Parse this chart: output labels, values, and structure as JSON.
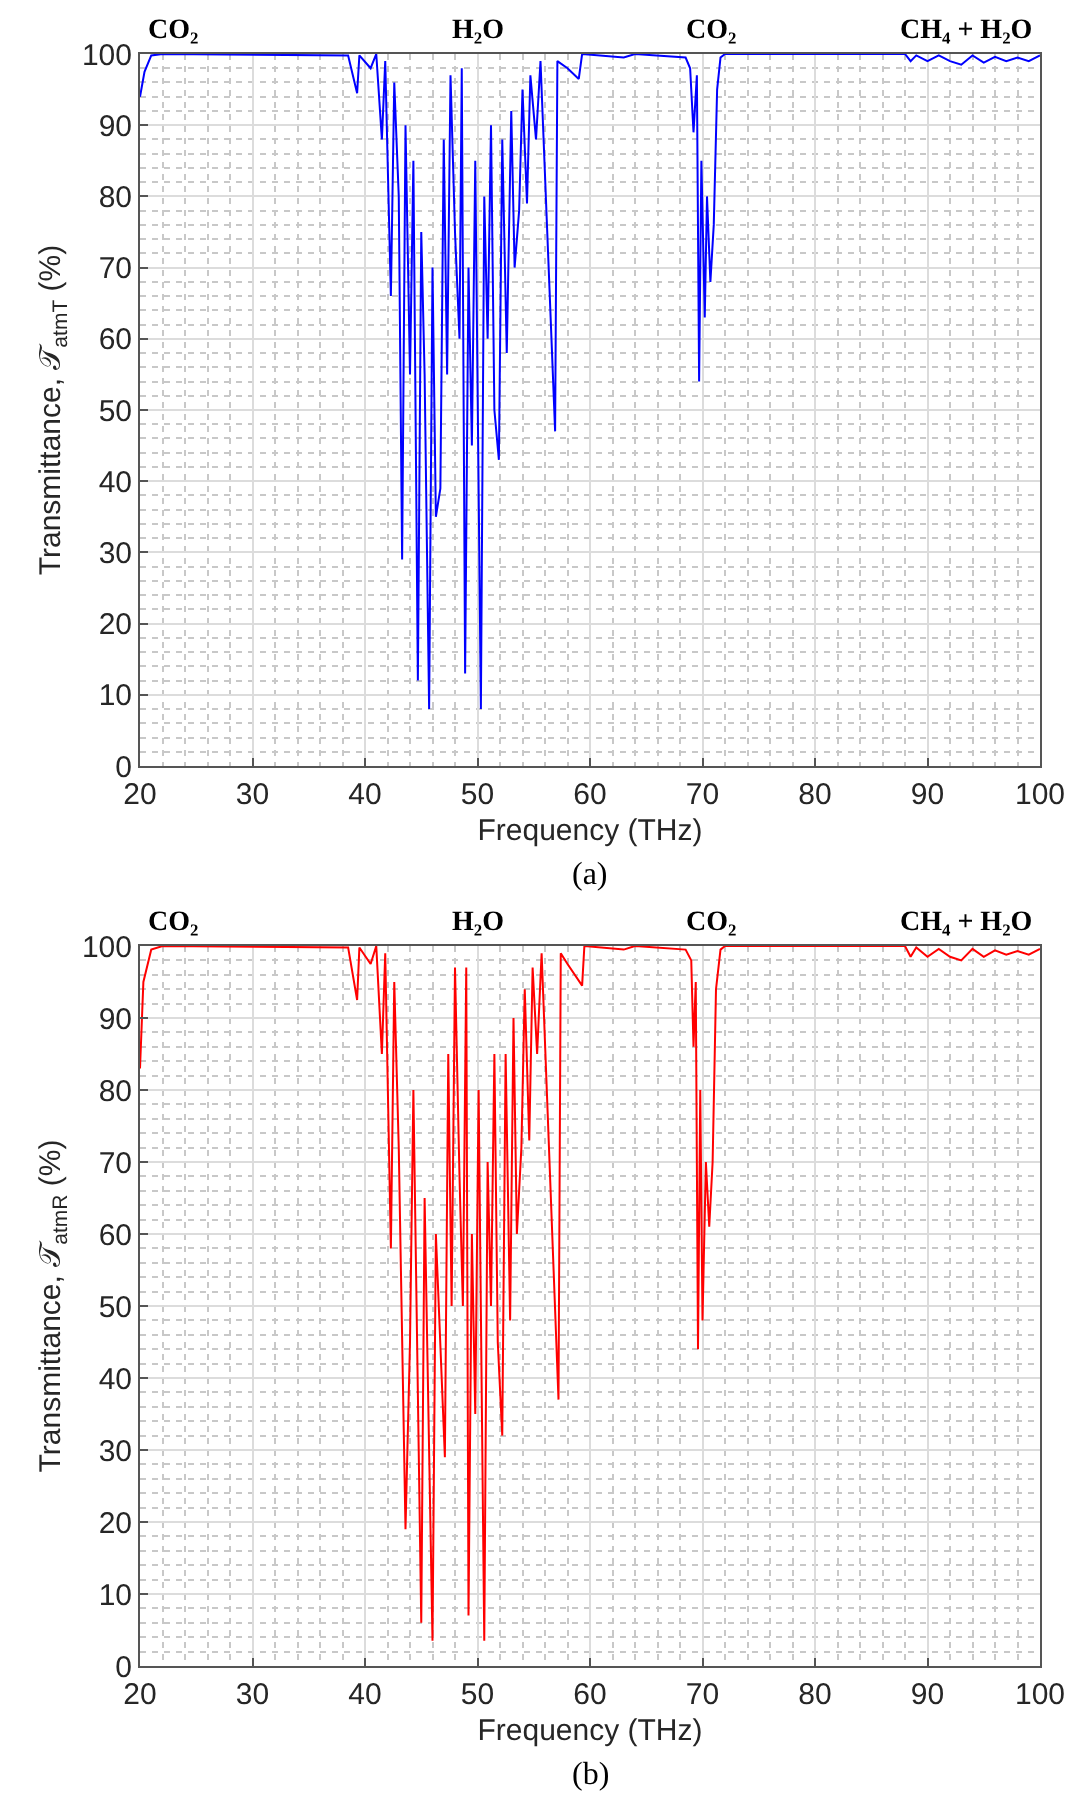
{
  "chart_data": [
    {
      "type": "line",
      "xlabel": "Frequency (THz)",
      "ylabel": "Transmittance, 𝒯$_{atmT}$ (%)",
      "xlim": [
        20,
        100
      ],
      "xticks": [
        20,
        30,
        40,
        50,
        60,
        70,
        80,
        90,
        100
      ],
      "ylim": [
        0,
        100
      ],
      "yticks": [
        0,
        10,
        20,
        30,
        40,
        50,
        60,
        70,
        80,
        90,
        100
      ],
      "grid": true,
      "marker": "none",
      "line_style": "solid",
      "series": [
        {
          "color": "#0000ff",
          "x": [
            20.0,
            20.4,
            21.0,
            22,
            38.5,
            39.3,
            39.5,
            40.5,
            41.0,
            41.5,
            41.8,
            42.3,
            42.6,
            43.0,
            43.3,
            43.6,
            44.0,
            44.3,
            44.7,
            45.0,
            45.3,
            45.7,
            46.0,
            46.3,
            46.7,
            47.0,
            47.3,
            47.6,
            48.0,
            48.4,
            48.6,
            48.9,
            49.2,
            49.5,
            49.8,
            50.3,
            50.6,
            50.9,
            51.2,
            51.5,
            51.9,
            52.2,
            52.6,
            53.0,
            53.3,
            53.7,
            54.0,
            54.4,
            54.7,
            55.2,
            55.6,
            56.9,
            57.1,
            58,
            59,
            59.3,
            63,
            64,
            68.5,
            68.9,
            69.2,
            69.5,
            69.7,
            69.9,
            70.2,
            70.4,
            70.7,
            71.0,
            71.3,
            71.6,
            72,
            88,
            88.5,
            89,
            90,
            91,
            92,
            93,
            94,
            95,
            96,
            97,
            98,
            99,
            100
          ],
          "values": [
            94,
            97.5,
            99.8,
            100,
            99.8,
            94.5,
            99.8,
            98,
            100,
            88,
            99,
            66,
            96,
            80,
            29,
            90,
            55,
            85,
            12,
            75,
            55,
            8,
            70,
            35,
            39,
            88,
            55,
            97,
            75,
            60,
            98,
            13,
            70,
            45,
            85,
            8,
            80,
            60,
            90,
            50,
            43,
            88,
            58,
            92,
            70,
            78,
            95,
            79,
            97,
            88,
            99,
            47,
            99,
            98,
            96.5,
            100,
            99.5,
            100,
            99.5,
            98,
            89,
            97,
            54,
            85,
            63,
            80,
            68,
            76,
            95,
            99.5,
            100,
            100,
            99,
            99.8,
            99,
            99.8,
            99,
            98.5,
            99.8,
            98.8,
            99.6,
            99,
            99.5,
            99,
            99.8
          ]
        }
      ],
      "annotations": [
        "CO₂",
        "H₂O",
        "CO₂",
        "CH₄ + H₂O",
        "(a)"
      ]
    },
    {
      "type": "line",
      "xlabel": "Frequency (THz)",
      "ylabel": "Transmittance, 𝒯$_{atmR}$ (%)",
      "xlim": [
        20,
        100
      ],
      "xticks": [
        20,
        30,
        40,
        50,
        60,
        70,
        80,
        90,
        100
      ],
      "ylim": [
        0,
        100
      ],
      "yticks": [
        0,
        10,
        20,
        30,
        40,
        50,
        60,
        70,
        80,
        90,
        100
      ],
      "grid": true,
      "marker": "none",
      "line_style": "solid",
      "series": [
        {
          "color": "#ff0000",
          "x": [
            20.0,
            20.3,
            21.0,
            22,
            38.5,
            39.3,
            39.5,
            40.5,
            41.0,
            41.5,
            41.8,
            42.3,
            42.6,
            43.0,
            43.6,
            44.0,
            44.3,
            45.0,
            45.3,
            46.0,
            46.3,
            47.1,
            47.4,
            47.7,
            48.0,
            48.4,
            48.7,
            49.0,
            49.2,
            49.5,
            49.8,
            50.1,
            50.6,
            50.9,
            51.2,
            51.5,
            51.8,
            52.2,
            52.5,
            52.9,
            53.2,
            53.5,
            53.9,
            54.2,
            54.6,
            54.9,
            55.3,
            55.7,
            57.2,
            57.4,
            58,
            59.3,
            59.5,
            63,
            64,
            68.5,
            69.0,
            69.2,
            69.4,
            69.6,
            69.8,
            70.0,
            70.3,
            70.6,
            70.9,
            71.2,
            71.6,
            72,
            88,
            88.5,
            89,
            90,
            91,
            92,
            93,
            94,
            95,
            96,
            97,
            98,
            99,
            100
          ],
          "values": [
            83,
            95,
            99.5,
            100,
            99.8,
            92.5,
            99.8,
            97.5,
            100,
            85,
            99,
            58,
            95,
            72,
            19,
            45,
            80,
            6,
            65,
            3.5,
            60,
            29,
            85,
            50,
            97,
            68,
            50,
            97,
            7,
            60,
            35,
            80,
            3.5,
            70,
            50,
            85,
            45,
            32,
            85,
            48,
            90,
            60,
            72,
            94,
            73,
            97,
            85,
            99,
            37,
            99,
            97.5,
            94.5,
            100,
            99.5,
            100,
            99.5,
            98,
            86,
            95,
            44,
            80,
            48,
            70,
            61,
            70,
            94,
            99.5,
            100,
            100,
            98.5,
            99.8,
            98.5,
            99.6,
            98.5,
            98,
            99.6,
            98.5,
            99.4,
            98.8,
            99.3,
            98.8,
            99.6
          ]
        }
      ],
      "annotations": [
        "CO₂",
        "H₂O",
        "CO₂",
        "CH₄ + H₂O",
        "(b)"
      ]
    }
  ]
}
